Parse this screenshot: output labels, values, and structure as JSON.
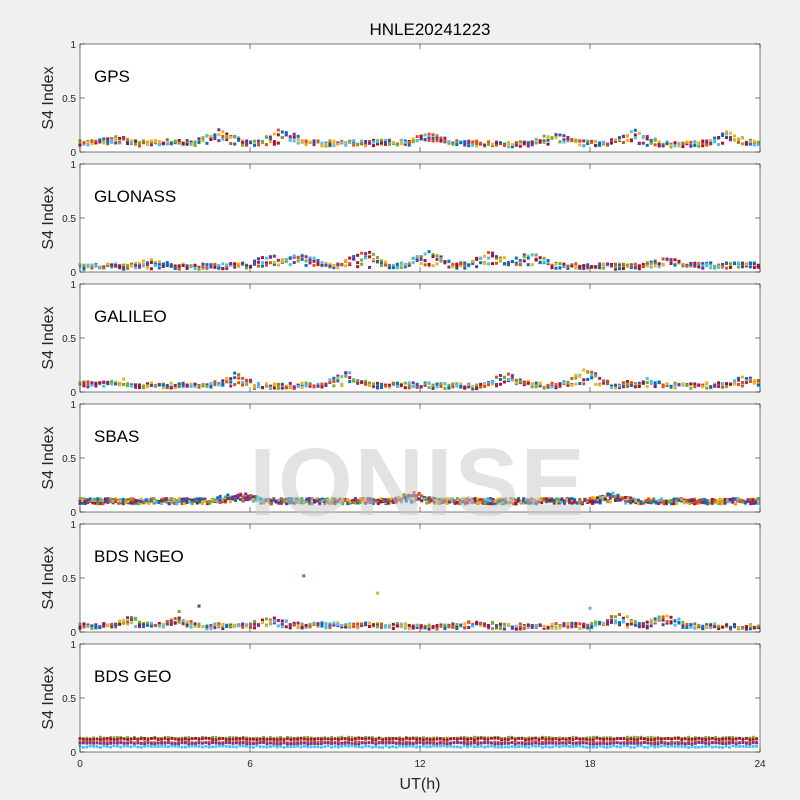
{
  "chart_data": {
    "type": "scatter",
    "title": "HNLE20241223",
    "watermark": "IONISE",
    "xlabel": "UT(h)",
    "xlim": [
      0,
      24
    ],
    "xticks": [
      0,
      6,
      12,
      18,
      24
    ],
    "grid": false,
    "legend": "none",
    "colors": [
      "#0072BD",
      "#D95319",
      "#EDB120",
      "#7E2F8E",
      "#77AC30",
      "#4DBEEE",
      "#A2142F"
    ],
    "panels": [
      {
        "label": "GPS",
        "ylabel": "S4 Index",
        "ylim": [
          0,
          1
        ],
        "yticks": [
          0,
          0.5,
          1
        ],
        "baseline": [
          [
            0,
            0.08
          ],
          [
            1,
            0.08
          ],
          [
            2,
            0.08
          ],
          [
            3,
            0.09
          ],
          [
            4,
            0.08
          ],
          [
            5,
            0.09
          ],
          [
            6,
            0.08
          ],
          [
            7,
            0.09
          ],
          [
            8,
            0.08
          ],
          [
            9,
            0.08
          ],
          [
            10,
            0.08
          ],
          [
            11,
            0.09
          ],
          [
            12,
            0.08
          ],
          [
            13,
            0.09
          ],
          [
            14,
            0.08
          ],
          [
            15,
            0.07
          ],
          [
            16,
            0.08
          ],
          [
            17,
            0.09
          ],
          [
            18,
            0.08
          ],
          [
            19,
            0.09
          ],
          [
            20,
            0.08
          ],
          [
            21,
            0.07
          ],
          [
            22,
            0.08
          ],
          [
            23,
            0.09
          ],
          [
            24,
            0.08
          ]
        ],
        "peaks": [
          [
            1.2,
            0.14
          ],
          [
            4.9,
            0.19
          ],
          [
            7.1,
            0.2
          ],
          [
            12.4,
            0.17
          ],
          [
            16.8,
            0.16
          ],
          [
            19.6,
            0.18
          ],
          [
            22.9,
            0.17
          ]
        ]
      },
      {
        "label": "GLONASS",
        "ylabel": "S4 Index",
        "ylim": [
          0,
          1
        ],
        "yticks": [
          0,
          0.5,
          1
        ],
        "baseline": [
          [
            0,
            0.05
          ],
          [
            2,
            0.05
          ],
          [
            4,
            0.05
          ],
          [
            6,
            0.06
          ],
          [
            8,
            0.06
          ],
          [
            10,
            0.06
          ],
          [
            12,
            0.06
          ],
          [
            14,
            0.06
          ],
          [
            16,
            0.06
          ],
          [
            18,
            0.05
          ],
          [
            20,
            0.05
          ],
          [
            22,
            0.06
          ],
          [
            24,
            0.06
          ]
        ],
        "peaks": [
          [
            2.6,
            0.1
          ],
          [
            6.8,
            0.15
          ],
          [
            7.8,
            0.16
          ],
          [
            10.0,
            0.2
          ],
          [
            12.3,
            0.19
          ],
          [
            14.5,
            0.17
          ],
          [
            15.9,
            0.16
          ],
          [
            20.7,
            0.11
          ]
        ]
      },
      {
        "label": "GALILEO",
        "ylabel": "S4 Index",
        "ylim": [
          0,
          1
        ],
        "yticks": [
          0,
          0.5,
          1
        ],
        "baseline": [
          [
            0,
            0.07
          ],
          [
            2,
            0.06
          ],
          [
            4,
            0.06
          ],
          [
            6,
            0.05
          ],
          [
            8,
            0.06
          ],
          [
            10,
            0.06
          ],
          [
            12,
            0.06
          ],
          [
            14,
            0.05
          ],
          [
            16,
            0.06
          ],
          [
            18,
            0.06
          ],
          [
            20,
            0.06
          ],
          [
            22,
            0.06
          ],
          [
            24,
            0.07
          ]
        ],
        "peaks": [
          [
            1.3,
            0.11
          ],
          [
            5.5,
            0.16
          ],
          [
            9.4,
            0.17
          ],
          [
            15.1,
            0.16
          ],
          [
            17.9,
            0.2
          ],
          [
            19.9,
            0.11
          ],
          [
            23.5,
            0.13
          ]
        ]
      },
      {
        "label": "SBAS",
        "ylabel": "S4 Index",
        "ylim": [
          0,
          1
        ],
        "yticks": [
          0,
          0.5,
          1
        ],
        "baseline": [
          [
            0,
            0.1
          ],
          [
            4,
            0.1
          ],
          [
            8,
            0.1
          ],
          [
            12,
            0.1
          ],
          [
            16,
            0.1
          ],
          [
            20,
            0.1
          ],
          [
            24,
            0.1
          ]
        ],
        "peaks": [
          [
            5.6,
            0.17
          ],
          [
            11.7,
            0.17
          ],
          [
            18.8,
            0.16
          ]
        ]
      },
      {
        "label": "BDS NGEO",
        "ylabel": "S4 Index",
        "ylim": [
          0,
          1
        ],
        "yticks": [
          0,
          0.5,
          1
        ],
        "baseline": [
          [
            0,
            0.05
          ],
          [
            2,
            0.06
          ],
          [
            4,
            0.05
          ],
          [
            6,
            0.06
          ],
          [
            8,
            0.06
          ],
          [
            10,
            0.06
          ],
          [
            12,
            0.05
          ],
          [
            14,
            0.05
          ],
          [
            16,
            0.05
          ],
          [
            18,
            0.06
          ],
          [
            20,
            0.06
          ],
          [
            22,
            0.05
          ],
          [
            24,
            0.05
          ]
        ],
        "peaks": [
          [
            1.8,
            0.13
          ],
          [
            3.5,
            0.12
          ],
          [
            6.8,
            0.11
          ],
          [
            14.0,
            0.09
          ],
          [
            19.0,
            0.15
          ],
          [
            20.7,
            0.14
          ]
        ],
        "outliers": [
          [
            7.9,
            0.52
          ],
          [
            10.5,
            0.36
          ],
          [
            4.2,
            0.24
          ],
          [
            3.5,
            0.19
          ],
          [
            18.0,
            0.22
          ]
        ]
      },
      {
        "label": "BDS GEO",
        "ylabel": "S4 Index",
        "ylim": [
          0,
          1
        ],
        "yticks": [
          0,
          0.5,
          1
        ],
        "levels": [
          0.13,
          0.12,
          0.09,
          0.08,
          0.05
        ]
      }
    ]
  }
}
